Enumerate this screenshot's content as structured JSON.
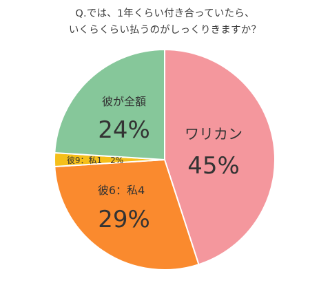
{
  "title_line1": "Q.では、1年くらい付き合っていたら、",
  "title_line2": "いくらくらい払うのがしっくりきますか？",
  "chart_data": {
    "type": "pie",
    "title": "Q.では、1年くらい付き合っていたら、いくらくらい払うのがしっくりきますか？",
    "slices": [
      {
        "label": "ワリカン",
        "value": 45,
        "pct_text": "45%",
        "color": "#f4979d"
      },
      {
        "label": "彼6：私4",
        "value": 29,
        "pct_text": "29%",
        "color": "#fa8a2e"
      },
      {
        "label": "彼9：私1",
        "value": 2,
        "pct_text": "2%",
        "color": "#f5bf1a"
      },
      {
        "label": "彼が全額",
        "value": 24,
        "pct_text": "24%",
        "color": "#86c79a"
      }
    ]
  }
}
